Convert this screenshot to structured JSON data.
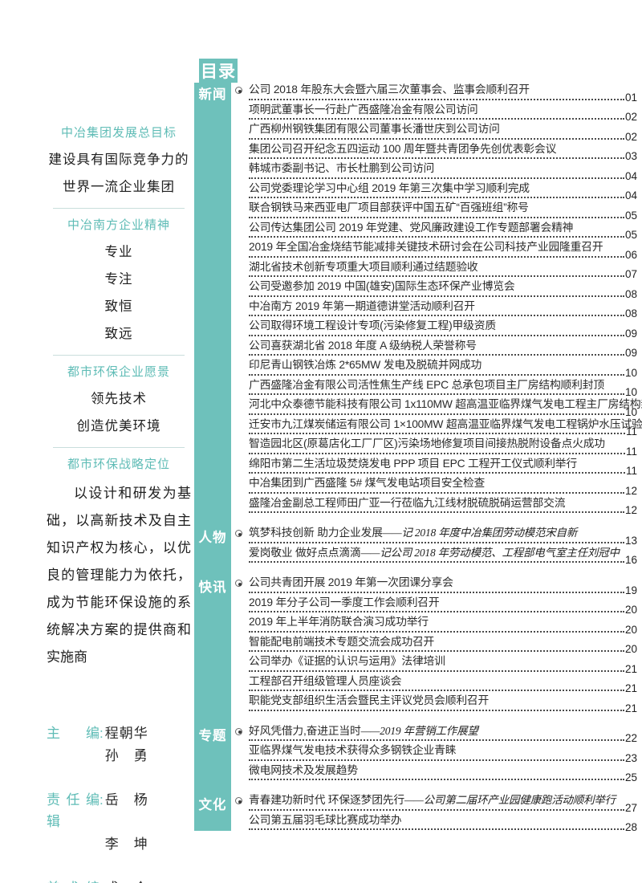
{
  "sidebar": {
    "blocks": [
      {
        "type": "heading",
        "text": "中冶集团发展总目标"
      },
      {
        "type": "line",
        "text": "建设具有国际竞争力的"
      },
      {
        "type": "line",
        "text": "世界一流企业集团"
      },
      {
        "type": "divider"
      },
      {
        "type": "heading",
        "text": "中冶南方企业精神"
      },
      {
        "type": "line",
        "text": "专业"
      },
      {
        "type": "line",
        "text": "专注"
      },
      {
        "type": "line",
        "text": "致恒"
      },
      {
        "type": "line",
        "text": "致远"
      },
      {
        "type": "divider-wide"
      },
      {
        "type": "heading",
        "text": "都市环保企业愿景"
      },
      {
        "type": "line",
        "text": "领先技术"
      },
      {
        "type": "line",
        "text": "创造优美环境"
      },
      {
        "type": "divider-wider"
      },
      {
        "type": "heading",
        "text": "都市环保战略定位"
      },
      {
        "type": "para",
        "text": "以设计和研发为基础，以高新技术及自主知识产权为核心，以优良的管理能力为依托，成为节能环保设施的系统解决方案的提供商和实施商"
      }
    ],
    "editors": [
      {
        "label": "主编",
        "name": "程朝华"
      },
      {
        "label": "",
        "name": "孙　勇"
      },
      {
        "label": "责任编辑",
        "name": "岳　杨"
      },
      {
        "label": "",
        "name": "李　坤"
      },
      {
        "label": "美术编辑",
        "name": "成　仓"
      }
    ]
  },
  "toc": {
    "header": "目录",
    "groups": [
      {
        "category": "新闻",
        "entries": [
          {
            "t": "公司 2018 年股东大会暨六届三次董事会、监事会顺利召开",
            "p": "01"
          },
          {
            "t": "项明武董事长一行赴广西盛隆冶金有限公司访问",
            "p": "02"
          },
          {
            "t": "广西柳州钢铁集团有限公司董事长潘世庆到公司访问",
            "p": "02"
          },
          {
            "t": "集团公司召开纪念五四运动 100 周年暨共青团争先创优表彰会议",
            "p": "03"
          },
          {
            "t": "韩城市委副书记、市长杜鹏到公司访问",
            "p": "04"
          },
          {
            "t": "公司党委理论学习中心组 2019 年第三次集中学习顺利完成",
            "p": "04"
          },
          {
            "t": "联合钢铁马来西亚电厂项目部获评中国五矿“百强班组”称号",
            "p": "05"
          },
          {
            "t": "公司传达集团公司 2019 年党建、党风廉政建设工作专题部署会精神",
            "p": "05"
          },
          {
            "t": "2019 年全国冶金烧结节能减排关键技术研讨会在公司科技产业园隆重召开",
            "p": "06"
          },
          {
            "t": "湖北省技术创新专项重大项目顺利通过结题验收",
            "p": "07"
          },
          {
            "t": "公司受邀参加 2019 中国(雄安)国际生态环保产业博览会",
            "p": "08"
          },
          {
            "t": "中冶南方 2019 年第一期道德讲堂活动顺利召开",
            "p": "08"
          },
          {
            "t": "公司取得环境工程设计专项(污染修复工程)甲级资质",
            "p": "09"
          },
          {
            "t": "公司喜获湖北省 2018 年度 A 级纳税人荣誉称号",
            "p": "09"
          },
          {
            "t": "印尼青山钢铁冶炼 2*65MW 发电及脱硫并网成功",
            "p": "10"
          },
          {
            "t": "广西盛隆冶金有限公司活性焦生产线 EPC 总承包项目主厂房结构顺利封顶",
            "p": "10"
          },
          {
            "t": "河北中众泰德节能科技有限公司 1x110MW 超高温亚临界煤气发电工程主厂房结构封顶",
            "p": "10"
          },
          {
            "t": "迁安市九江煤炭储运有限公司 1×100MW 超高温亚临界煤气发电工程锅炉水压试验一次成功",
            "p": "11"
          },
          {
            "t": "智造园北区(原葛店化工厂厂区)污染场地修复项目间接热脱附设备点火成功",
            "p": "11"
          },
          {
            "t": "绵阳市第二生活垃圾焚烧发电 PPP 项目 EPC 工程开工仪式顺利举行",
            "p": "11"
          },
          {
            "t": "中冶集团到广西盛隆 5# 煤气发电站项目安全检查",
            "p": "12"
          },
          {
            "t": "盛隆冶金副总工程师田广亚一行莅临九江线材脱硫脱硝运营部交流",
            "p": "12"
          }
        ]
      },
      {
        "category": "人物",
        "entries": [
          {
            "t": "筑梦科技创新 助力企业发展",
            "k": "记 2018 年度中冶集团劳动模范宋自新",
            "p": "13"
          },
          {
            "t": "爱岗敬业 做好点点滴滴",
            "k": "记公司 2018 年劳动模范、工程部电气室主任刘冠中",
            "p": "16"
          }
        ]
      },
      {
        "category": "快讯",
        "entries": [
          {
            "t": "公司共青团开展 2019 年第一次团课分享会",
            "p": "19"
          },
          {
            "t": "2019 年分子公司一季度工作会顺利召开",
            "p": "20"
          },
          {
            "t": "2019 年上半年消防联合演习成功举行",
            "p": "20"
          },
          {
            "t": "智能配电前端技术专题交流会成功召开",
            "p": "20"
          },
          {
            "t": "公司举办《证据的认识与运用》法律培训",
            "p": "21"
          },
          {
            "t": "工程部召开组级管理人员座谈会",
            "p": "21"
          },
          {
            "t": "职能党支部组织生活会暨民主评议党员会顺利召开",
            "p": "21"
          }
        ]
      },
      {
        "category": "专题",
        "entries": [
          {
            "t": "好风凭借力,奋进正当时",
            "k": "2019 年营销工作展望",
            "p": "22"
          },
          {
            "t": "亚临界煤气发电技术获得众多钢铁企业青睐",
            "p": "23"
          },
          {
            "t": "微电网技术及发展趋势",
            "p": "25"
          }
        ]
      },
      {
        "category": "文化",
        "entries": [
          {
            "t": "青春建功新时代 环保逐梦团先行",
            "k": "公司第二届环产业园健康跑活动顺利举行",
            "p": "27"
          },
          {
            "t": "公司第五届羽毛球比赛成功举办",
            "p": "28"
          }
        ]
      }
    ]
  },
  "colors": {
    "teal_band": "#6ec1bb",
    "teal_text": "#5fbcb6",
    "ink": "#2b2b2b"
  }
}
